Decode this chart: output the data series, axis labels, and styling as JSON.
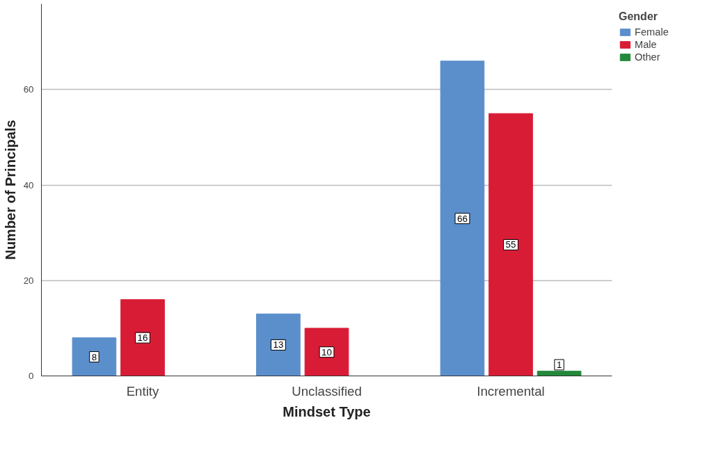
{
  "chart_data": {
    "type": "bar",
    "xlabel": "Mindset Type",
    "ylabel": "Number of Principals",
    "legend_title": "Gender",
    "categories": [
      "Entity",
      "Unclassified",
      "Incremental"
    ],
    "series": [
      {
        "name": "Female",
        "color": "#5b8fcb",
        "values": [
          8,
          13,
          66
        ]
      },
      {
        "name": "Male",
        "color": "#d91c35",
        "values": [
          16,
          10,
          55
        ]
      },
      {
        "name": "Other",
        "color": "#23893a",
        "values": [
          null,
          null,
          1
        ]
      }
    ],
    "ylim": [
      0,
      78
    ],
    "yticks": [
      0,
      20,
      40,
      60
    ],
    "grid": "y",
    "legend": "top right",
    "data_labels": true
  }
}
